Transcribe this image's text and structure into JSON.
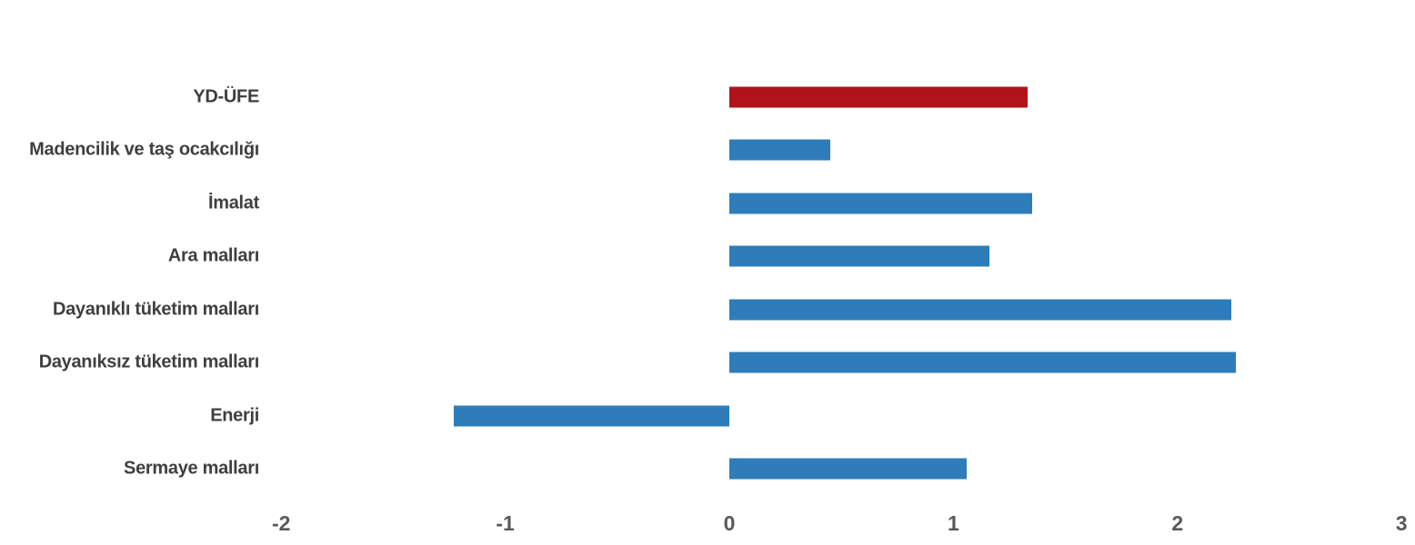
{
  "chart_data": {
    "type": "bar",
    "orientation": "horizontal",
    "title": "",
    "xlabel": "",
    "ylabel": "",
    "categories": [
      "YD-ÜFE",
      "Madencilik ve taş ocakcılığı",
      "İmalat",
      "Ara malları",
      "Dayanıklı tüketim malları",
      "Dayanıksız tüketim malları",
      "Enerji",
      "Sermaye malları"
    ],
    "values": [
      1.33,
      0.45,
      1.35,
      1.16,
      2.24,
      2.26,
      -1.23,
      1.06
    ],
    "bar_colors": [
      "#B0131A",
      "#2E7DBA",
      "#2E7DBA",
      "#2E7DBA",
      "#2E7DBA",
      "#2E7DBA",
      "#2E7DBA",
      "#2E7DBA"
    ],
    "xlim": [
      -2,
      3
    ],
    "x_ticks": [
      "-2",
      "-1",
      "0",
      "1",
      "2",
      "3"
    ],
    "grid": false,
    "legend": false
  },
  "colors": {
    "highlight_bar": "#B0131A",
    "default_bar": "#2E7DBA",
    "label_text": "#3F3F3F",
    "tick_text": "#595959",
    "background": "#FFFFFF"
  }
}
